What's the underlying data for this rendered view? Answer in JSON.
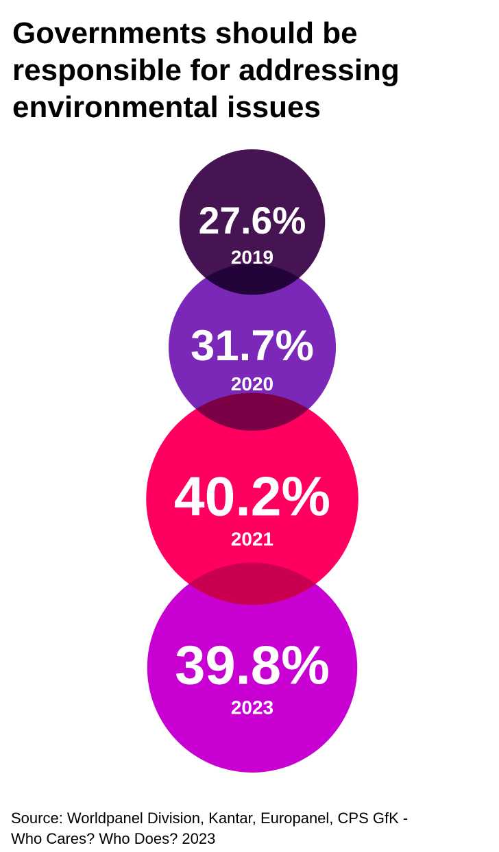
{
  "chart_data": {
    "type": "bubble",
    "title": "Governments should be responsible for addressing environmental issues",
    "categories": [
      "2019",
      "2020",
      "2021",
      "2023"
    ],
    "values": [
      27.6,
      31.7,
      40.2,
      39.8
    ],
    "value_labels": [
      "27.6%",
      "31.7%",
      "40.2%",
      "39.8%"
    ],
    "colors": [
      "#461452",
      "#7b28b8",
      "#ff0060",
      "#c800d2"
    ],
    "source": "Source: Worldpanel Division, Kantar, Europanel, CPS GfK - Who Cares? Who Does? 2023"
  }
}
